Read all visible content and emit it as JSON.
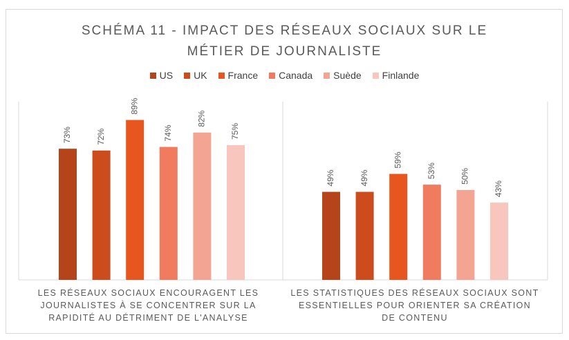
{
  "title": {
    "line1": "SCHÉMA 11 - IMPACT DES RÉSEAUX SOCIAUX SUR LE",
    "line2": "MÉTIER DE JOURNALISTE"
  },
  "legend": [
    {
      "name": "US",
      "color": "#b5441b"
    },
    {
      "name": "UK",
      "color": "#cd4c1d"
    },
    {
      "name": "France",
      "color": "#e8561f"
    },
    {
      "name": "Canada",
      "color": "#f07b5e"
    },
    {
      "name": "Suède",
      "color": "#f4a493"
    },
    {
      "name": "Finlande",
      "color": "#f8c6bc"
    }
  ],
  "categories": {
    "cat1": {
      "line1": "LES RÉSEAUX SOCIAUX ENCOURAGENT LES",
      "line2": "JOURNALISTES À SE CONCENTRER SUR LA",
      "line3": "RAPIDITÉ AU DÉTRIMENT DE L'ANALYSE"
    },
    "cat2": {
      "line1": "LES STATISTIQUES DES RÉSEAUX SOCIAUX SONT",
      "line2": "ESSENTIELLES POUR ORIENTER SA CRÉATION",
      "line3": "DE CONTENU"
    }
  },
  "chart_data": {
    "type": "bar",
    "title": "SCHÉMA 11 - IMPACT DES RÉSEAUX SOCIAUX SUR LE MÉTIER DE JOURNALISTE",
    "categories": [
      "LES RÉSEAUX SOCIAUX ENCOURAGENT LES JOURNALISTES À SE CONCENTRER SUR LA RAPIDITÉ AU DÉTRIMENT DE L'ANALYSE",
      "LES STATISTIQUES DES RÉSEAUX SOCIAUX SONT ESSENTIELLES POUR ORIENTER SA CRÉATION DE CONTENU"
    ],
    "series": [
      {
        "name": "US",
        "values": [
          73,
          49
        ],
        "labels": [
          "73%",
          "49%"
        ],
        "color": "#b5441b"
      },
      {
        "name": "UK",
        "values": [
          72,
          49
        ],
        "labels": [
          "72%",
          "49%"
        ],
        "color": "#cd4c1d"
      },
      {
        "name": "France",
        "values": [
          89,
          59
        ],
        "labels": [
          "89%",
          "59%"
        ],
        "color": "#e8561f"
      },
      {
        "name": "Canada",
        "values": [
          74,
          53
        ],
        "labels": [
          "74%",
          "53%"
        ],
        "color": "#f07b5e"
      },
      {
        "name": "Suède",
        "values": [
          82,
          50
        ],
        "labels": [
          "82%",
          "50%"
        ],
        "color": "#f4a493"
      },
      {
        "name": "Finlande",
        "values": [
          75,
          43
        ],
        "labels": [
          "75%",
          "43%"
        ],
        "color": "#f8c6bc"
      }
    ],
    "ylim": [
      0,
      100
    ],
    "grid": false,
    "legend_position": "top",
    "value_unit": "%"
  }
}
